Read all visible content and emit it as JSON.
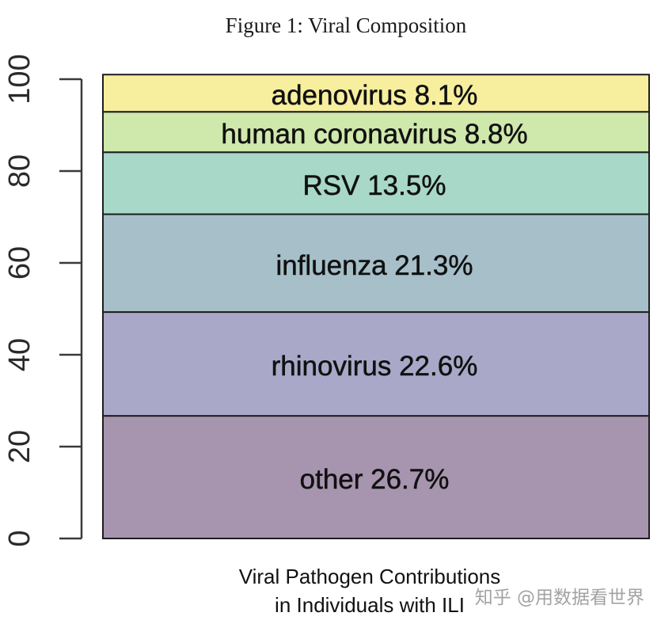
{
  "chart_data": {
    "type": "bar",
    "stacked": true,
    "title": "Figure 1: Viral Composition",
    "xlabel": [
      "Viral Pathogen Contributions",
      "in Individuals with ILI"
    ],
    "ylim": [
      0,
      100
    ],
    "yticks": [
      0,
      20,
      40,
      60,
      80,
      100
    ],
    "grid": false,
    "unit": "%",
    "series": [
      {
        "name": "other",
        "value": 26.7,
        "color": "#a794ae"
      },
      {
        "name": "rhinovirus",
        "value": 22.6,
        "color": "#a9a8c8"
      },
      {
        "name": "influenza",
        "value": 21.3,
        "color": "#a6bfc9"
      },
      {
        "name": "RSV",
        "value": 13.5,
        "color": "#a8d8c8"
      },
      {
        "name": "human coronavirus",
        "value": 8.8,
        "color": "#cfe8ab"
      },
      {
        "name": "adenovirus",
        "value": 8.1,
        "color": "#f7ee9e"
      }
    ]
  },
  "watermark": "知乎 @用数据看世界"
}
